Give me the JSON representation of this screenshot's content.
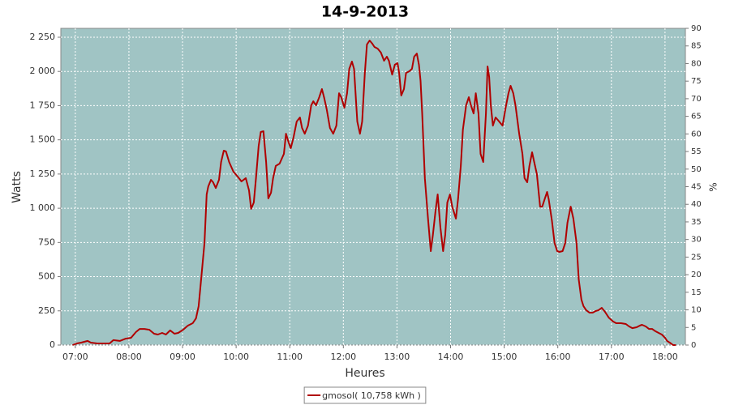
{
  "chart_data": {
    "type": "line",
    "title": "14-9-2013",
    "xlabel": "Heures",
    "ylabel": "Watts",
    "y2label": "%",
    "xlim": [
      6.73,
      18.38
    ],
    "xticks": [
      {
        "value": 7,
        "label": "07:00"
      },
      {
        "value": 8,
        "label": "08:00"
      },
      {
        "value": 9,
        "label": "09:00"
      },
      {
        "value": 10,
        "label": "10:00"
      },
      {
        "value": 11,
        "label": "11:00"
      },
      {
        "value": 12,
        "label": "12:00"
      },
      {
        "value": 13,
        "label": "13:00"
      },
      {
        "value": 14,
        "label": "14:00"
      },
      {
        "value": 15,
        "label": "15:00"
      },
      {
        "value": 16,
        "label": "16:00"
      },
      {
        "value": 17,
        "label": "17:00"
      },
      {
        "value": 18,
        "label": "18:00"
      }
    ],
    "ylim": [
      0,
      2315
    ],
    "yticks": [
      0,
      250,
      500,
      750,
      {
        "value": 1000,
        "label": "1 000"
      },
      {
        "value": 1250,
        "label": "1 250"
      },
      {
        "value": 1500,
        "label": "1 500"
      },
      {
        "value": 1750,
        "label": "1 750"
      },
      {
        "value": 2000,
        "label": "2 000"
      },
      {
        "value": 2250,
        "label": "2 250"
      }
    ],
    "y2lim": [
      0,
      90
    ],
    "y2ticks": [
      0,
      5,
      10,
      15,
      20,
      25,
      30,
      35,
      40,
      45,
      50,
      55,
      60,
      65,
      70,
      75,
      80,
      85,
      90
    ],
    "grid": true,
    "background": "#a0c4c4",
    "legend": "bottom",
    "x": [
      6.95,
      7.03,
      7.11,
      7.23,
      7.29,
      7.41,
      7.56,
      7.64,
      7.71,
      7.83,
      7.94,
      8.04,
      8.13,
      8.2,
      8.29,
      8.38,
      8.47,
      8.54,
      8.62,
      8.69,
      8.77,
      8.85,
      8.92,
      9.01,
      9.1,
      9.19,
      9.25,
      9.3,
      9.34,
      9.41,
      9.45,
      9.48,
      9.53,
      9.57,
      9.62,
      9.68,
      9.72,
      9.77,
      9.81,
      9.87,
      9.95,
      10.03,
      10.1,
      10.18,
      10.24,
      10.28,
      10.33,
      10.37,
      10.42,
      10.46,
      10.51,
      10.56,
      10.6,
      10.65,
      10.69,
      10.74,
      10.81,
      10.89,
      10.93,
      10.98,
      11.02,
      11.07,
      11.13,
      11.19,
      11.23,
      11.28,
      11.34,
      11.4,
      11.44,
      11.49,
      11.55,
      11.6,
      11.64,
      11.69,
      11.75,
      11.81,
      11.87,
      11.92,
      11.96,
      12.02,
      12.07,
      12.11,
      12.16,
      12.2,
      12.26,
      12.31,
      12.35,
      12.4,
      12.44,
      12.49,
      12.54,
      12.58,
      12.64,
      12.7,
      12.76,
      12.81,
      12.85,
      12.91,
      12.96,
      13.01,
      13.04,
      13.08,
      13.13,
      13.17,
      13.23,
      13.28,
      13.32,
      13.37,
      13.41,
      13.44,
      13.47,
      13.52,
      13.58,
      13.63,
      13.67,
      13.72,
      13.76,
      13.81,
      13.86,
      13.9,
      13.94,
      13.99,
      14.03,
      14.1,
      14.14,
      14.19,
      14.23,
      14.29,
      14.34,
      14.38,
      14.43,
      14.47,
      14.52,
      14.56,
      14.61,
      14.66,
      14.69,
      14.72,
      14.75,
      14.79,
      14.84,
      14.88,
      14.93,
      14.97,
      15.03,
      15.08,
      15.12,
      15.17,
      15.21,
      15.28,
      15.34,
      15.38,
      15.43,
      15.47,
      15.52,
      15.56,
      15.61,
      15.67,
      15.71,
      15.76,
      15.8,
      15.83,
      15.89,
      15.94,
      15.99,
      16.03,
      16.09,
      16.14,
      16.18,
      16.24,
      16.29,
      16.35,
      16.39,
      16.44,
      16.48,
      16.53,
      16.59,
      16.65,
      16.71,
      16.76,
      16.82,
      16.88,
      16.95,
      17.03,
      17.09,
      17.18,
      17.27,
      17.33,
      17.39,
      17.47,
      17.53,
      17.57,
      17.64,
      17.7,
      17.76,
      17.82,
      17.88,
      17.94,
      18.0,
      18.04,
      18.11,
      18.15,
      18.2
    ],
    "series": [
      {
        "name": "gmosol( 10,758 kWh )",
        "color": "#b00000",
        "values": [
          0,
          12,
          18,
          30,
          18,
          12,
          12,
          12,
          36,
          30,
          47,
          53,
          95,
          118,
          118,
          112,
          83,
          77,
          89,
          77,
          107,
          83,
          89,
          112,
          142,
          160,
          195,
          284,
          450,
          746,
          1101,
          1160,
          1208,
          1190,
          1148,
          1208,
          1338,
          1421,
          1415,
          1338,
          1267,
          1231,
          1196,
          1220,
          1131,
          995,
          1042,
          1220,
          1456,
          1557,
          1563,
          1338,
          1072,
          1113,
          1220,
          1309,
          1326,
          1397,
          1545,
          1480,
          1439,
          1516,
          1634,
          1664,
          1587,
          1545,
          1604,
          1752,
          1782,
          1752,
          1812,
          1871,
          1812,
          1723,
          1587,
          1545,
          1604,
          1841,
          1812,
          1735,
          1841,
          2019,
          2072,
          2019,
          1634,
          1545,
          1634,
          1989,
          2197,
          2226,
          2203,
          2179,
          2167,
          2138,
          2078,
          2108,
          2078,
          1977,
          2049,
          2061,
          1989,
          1824,
          1871,
          1989,
          2001,
          2019,
          2108,
          2131,
          2049,
          1930,
          1693,
          1219,
          923,
          687,
          805,
          983,
          1101,
          864,
          687,
          805,
          1042,
          1101,
          1012,
          924,
          1072,
          1309,
          1575,
          1753,
          1812,
          1753,
          1693,
          1841,
          1693,
          1397,
          1338,
          1693,
          2037,
          1960,
          1753,
          1604,
          1664,
          1646,
          1622,
          1604,
          1741,
          1841,
          1895,
          1841,
          1753,
          1545,
          1397,
          1220,
          1190,
          1309,
          1409,
          1338,
          1249,
          1012,
          1012,
          1072,
          1119,
          1066,
          912,
          746,
          687,
          681,
          687,
          746,
          894,
          1012,
          924,
          746,
          480,
          332,
          284,
          255,
          237,
          237,
          249,
          255,
          272,
          243,
          201,
          172,
          160,
          160,
          154,
          136,
          124,
          130,
          142,
          148,
          136,
          118,
          118,
          101,
          89,
          77,
          53,
          30,
          12,
          0,
          0
        ]
      }
    ]
  }
}
